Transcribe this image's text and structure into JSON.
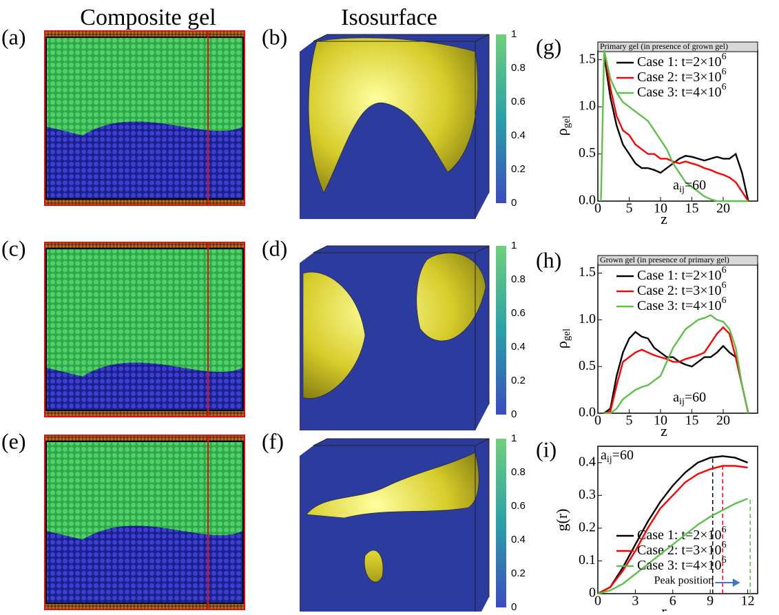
{
  "figure": {
    "column_titles": [
      "Composite gel",
      "Isosurface"
    ],
    "panel_labels": [
      "(a)",
      "(b)",
      "(c)",
      "(d)",
      "(e)",
      "(f)",
      "(g)",
      "(h)",
      "(i)"
    ],
    "colorbar_ticks": [
      0,
      0.2,
      0.4,
      0.6,
      0.8,
      1
    ]
  },
  "chart_data": [
    {
      "type": "line",
      "title": "Primary gel (in presence of grown gel)",
      "xlabel": "z",
      "ylabel": {
        "text": "ρ",
        "sub": "gel"
      },
      "annotation": {
        "text": "a",
        "sub": "ij",
        "rest": "=60"
      },
      "x": [
        0.5,
        1,
        2,
        3,
        4,
        5,
        6,
        7,
        8,
        9,
        10,
        11,
        12,
        13,
        14,
        15,
        16,
        17,
        18,
        19,
        20,
        21,
        22,
        23,
        24
      ],
      "xlim": [
        0,
        25.5
      ],
      "xticks": [
        0,
        5,
        10,
        15,
        20
      ],
      "ylim": [
        0,
        1.6
      ],
      "yticks": [
        {
          "value": 0,
          "label": "0.0"
        },
        {
          "value": 0.5,
          "label": "0.5"
        },
        {
          "value": 1,
          "label": "1.0"
        },
        {
          "value": 1.5,
          "label": "1.5"
        }
      ],
      "legend": "upper right",
      "series": [
        {
          "name": "Case 1: t=2×10",
          "sup": "6",
          "color": "#000000",
          "values": [
            null,
            1.55,
            1.1,
            0.8,
            0.6,
            0.5,
            0.4,
            0.35,
            0.35,
            0.33,
            0.3,
            0.35,
            0.4,
            0.45,
            0.48,
            0.47,
            0.45,
            0.43,
            0.45,
            0.47,
            0.45,
            0.45,
            0.5,
            0.3,
            0.0
          ]
        },
        {
          "name": "Case 2: t=3×10",
          "sup": "6",
          "color": "#ff0000",
          "values": [
            null,
            1.6,
            1.2,
            0.9,
            0.75,
            0.7,
            0.6,
            0.55,
            0.5,
            0.5,
            0.45,
            0.45,
            0.42,
            0.4,
            0.42,
            0.4,
            0.38,
            0.35,
            0.33,
            0.3,
            0.28,
            0.25,
            0.2,
            0.1,
            0.0
          ]
        },
        {
          "name": "Case 3: t=4×10",
          "sup": "6",
          "color": "#5cc04a",
          "values": [
            0,
            1.6,
            1.3,
            1.15,
            1.05,
            1.0,
            0.95,
            0.9,
            0.85,
            0.75,
            0.65,
            0.55,
            0.4,
            0.3,
            0.2,
            0.15,
            0.1,
            0.05,
            0.02,
            0,
            0,
            0,
            0,
            0,
            0
          ]
        }
      ]
    },
    {
      "type": "line",
      "title": "Grown gel (in presence of primary gel)",
      "xlabel": "z",
      "ylabel": {
        "text": "ρ",
        "sub": "gel"
      },
      "annotation": {
        "text": "a",
        "sub": "ij",
        "rest": "=60"
      },
      "x": [
        1,
        2,
        3,
        4,
        5,
        6,
        7,
        8,
        9,
        10,
        11,
        12,
        13,
        14,
        15,
        16,
        17,
        18,
        19,
        20,
        21,
        22,
        23,
        24
      ],
      "xlim": [
        0,
        25.5
      ],
      "xticks": [
        0,
        5,
        10,
        15,
        20
      ],
      "ylim": [
        0,
        1.6
      ],
      "yticks": [
        {
          "value": 0,
          "label": "0.0"
        },
        {
          "value": 0.5,
          "label": "0.5"
        },
        {
          "value": 1,
          "label": "1.0"
        },
        {
          "value": 1.5,
          "label": "1.5"
        }
      ],
      "legend": "upper right",
      "series": [
        {
          "name": "Case 1: t=2×10",
          "sup": "6",
          "color": "#000000",
          "values": [
            0,
            0.05,
            0.4,
            0.65,
            0.8,
            0.87,
            0.82,
            0.8,
            0.7,
            0.65,
            0.6,
            0.6,
            0.55,
            0.52,
            0.5,
            0.55,
            0.6,
            0.6,
            0.65,
            0.72,
            0.65,
            0.6,
            0.3,
            0
          ]
        },
        {
          "name": "Case 2: t=3×10",
          "sup": "6",
          "color": "#ff0000",
          "values": [
            0,
            0.02,
            0.3,
            0.55,
            0.6,
            0.65,
            0.68,
            0.65,
            0.62,
            0.6,
            0.58,
            0.55,
            0.55,
            0.58,
            0.6,
            0.62,
            0.65,
            0.75,
            0.85,
            0.92,
            0.85,
            0.6,
            0.3,
            0
          ]
        },
        {
          "name": "Case 3: t=4×10",
          "sup": "6",
          "color": "#5cc04a",
          "values": [
            0,
            0,
            0.05,
            0.15,
            0.2,
            0.25,
            0.28,
            0.3,
            0.35,
            0.4,
            0.55,
            0.7,
            0.8,
            0.9,
            0.95,
            1.0,
            1.02,
            1.05,
            1.0,
            0.98,
            0.9,
            0.7,
            0.3,
            0
          ]
        }
      ]
    },
    {
      "type": "line",
      "xlabel": "r",
      "ylabel": {
        "text": "g(r)"
      },
      "annotation": {
        "text": "a",
        "sub": "ij",
        "rest": "=60"
      },
      "note": "Peak position",
      "x": [
        0,
        1,
        2,
        3,
        4,
        5,
        6,
        7,
        8,
        9,
        10,
        11,
        12
      ],
      "xlim": [
        0,
        12.8
      ],
      "xticks": [
        0,
        3,
        6,
        9,
        12
      ],
      "ylim": [
        0,
        0.45
      ],
      "yticks": [
        0,
        0.1,
        0.2,
        0.3,
        0.4
      ],
      "legend": "lower right",
      "peak_lines": [
        9.2,
        10,
        12.2
      ],
      "series": [
        {
          "name": "Case 1: t=2×10",
          "sup": "6",
          "color": "#000000",
          "values": [
            0,
            0.02,
            0.08,
            0.15,
            0.22,
            0.28,
            0.33,
            0.37,
            0.4,
            0.415,
            0.42,
            0.415,
            0.4
          ]
        },
        {
          "name": "Case 2: t=3×10",
          "sup": "6",
          "color": "#ff0000",
          "values": [
            0,
            0.02,
            0.07,
            0.13,
            0.2,
            0.26,
            0.3,
            0.34,
            0.365,
            0.38,
            0.39,
            0.39,
            0.385
          ]
        },
        {
          "name": "Case 3: t=4×10",
          "sup": "6",
          "color": "#5cc04a",
          "values": [
            0,
            0.01,
            0.03,
            0.06,
            0.09,
            0.12,
            0.15,
            0.18,
            0.21,
            0.235,
            0.255,
            0.275,
            0.29
          ]
        }
      ]
    }
  ]
}
